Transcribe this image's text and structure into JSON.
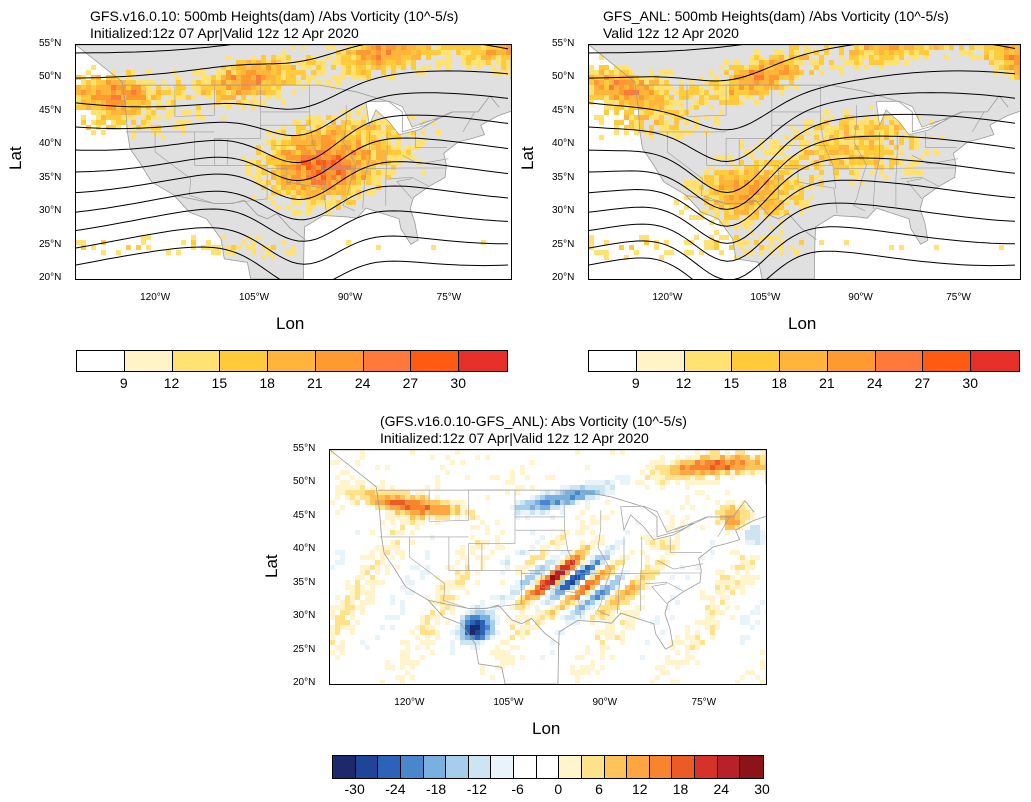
{
  "panels": [
    {
      "id": "gfs",
      "title_line1": "GFS.v16.0.10: 500mb Heights(dam) /Abs Vorticity (10^-5/s)",
      "title_line2": "Initialized:12z 07 Apr|Valid 12z 12 Apr 2020",
      "xlabel": "Lon",
      "ylabel": "Lat"
    },
    {
      "id": "anl",
      "title_line1": "GFS_ANL: 500mb Heights(dam) /Abs Vorticity (10^-5/s)",
      "title_line2": "Valid 12z 12 Apr 2020",
      "xlabel": "Lon",
      "ylabel": ""
    },
    {
      "id": "diff",
      "title_line1": "(GFS.v16.0.10-GFS_ANL): Abs Vorticity (10^-5/s)",
      "title_line2": "Initialized:12z 07 Apr|Valid 12z 12 Apr 2020",
      "xlabel": "Lon",
      "ylabel": "Lat"
    }
  ],
  "lat_ticks": [
    "55°N",
    "50°N",
    "45°N",
    "40°N",
    "35°N",
    "30°N",
    "25°N",
    "20°N"
  ],
  "lon_ticks": [
    "120°W",
    "105°W",
    "90°W",
    "75°W"
  ],
  "lon_tick_values": [
    -120,
    -105,
    -90,
    -75
  ],
  "lat_tick_values": [
    55,
    50,
    45,
    40,
    35,
    30,
    25,
    20
  ],
  "map_extent": {
    "lon_min": -132,
    "lon_max": -66,
    "lat_min": 20,
    "lat_max": 55
  },
  "colorbar_vort": {
    "labels": [
      "9",
      "12",
      "15",
      "18",
      "21",
      "24",
      "27",
      "30"
    ],
    "colors": [
      "#ffffff",
      "#fff4c8",
      "#ffe272",
      "#ffcb3a",
      "#ffb43c",
      "#ff9a30",
      "#ff7a3a",
      "#ff5a12",
      "#e8302a"
    ]
  },
  "colorbar_diff": {
    "labels": [
      "-30",
      "-24",
      "-18",
      "-12",
      "-6",
      "0",
      "6",
      "12",
      "18",
      "24",
      "30"
    ],
    "colors": [
      "#1a2a6a",
      "#1f4598",
      "#2c62b8",
      "#4a86cc",
      "#7ab0e0",
      "#a6cdea",
      "#cde4f2",
      "#e8f3fa",
      "#ffffff",
      "#ffffff",
      "#fff4cc",
      "#ffe28a",
      "#ffc35a",
      "#ffa542",
      "#f7842e",
      "#ec5a26",
      "#d6322a",
      "#b8202a",
      "#8c1418"
    ]
  },
  "colors": {
    "land": "#e0e0e0",
    "border": "#9a9a9a",
    "contour": "#000000"
  }
}
